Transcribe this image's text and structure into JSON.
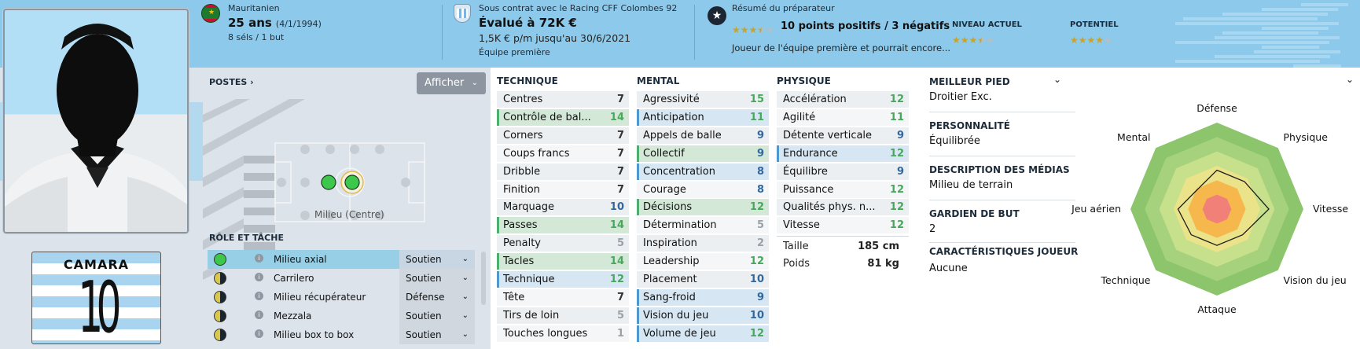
{
  "header": {
    "nationality": "Mauritanien",
    "age": "25 ans",
    "birthdate": "(4/1/1994)",
    "caps": "8 séls / 1 but",
    "contract_with": "Sous contrat avec le Racing CFF Colombes 92",
    "value": "Évalué à 72K €",
    "wage": "1,5K € p/m jusqu'au 30/6/2021",
    "squad": "Équipe première",
    "scout_title": "Résumé du préparateur",
    "scout_summary": "10 points positifs / 3 négatifs",
    "scout_detail": "Joueur de l'équipe première et pourrait encore...",
    "scout_stars": 3.5,
    "current_label": "NIVEAU ACTUEL",
    "current_stars": 3.5,
    "potential_label": "POTENTIEL",
    "potential_stars": 4
  },
  "player": {
    "shirt_name": "CAMARA",
    "shirt_number": "10"
  },
  "positions": {
    "title": "POSTES ›",
    "button": "Afficher",
    "position_label": "Milieu (Centre)",
    "roles_title": "RÔLE ET TÂCHE",
    "roles": [
      {
        "name": "Milieu axial",
        "duty": "Soutien",
        "selected": true,
        "rating": "full"
      },
      {
        "name": "Carrilero",
        "duty": "Soutien",
        "selected": false,
        "rating": "half"
      },
      {
        "name": "Milieu récupérateur",
        "duty": "Défense",
        "selected": false,
        "rating": "half"
      },
      {
        "name": "Mezzala",
        "duty": "Soutien",
        "selected": false,
        "rating": "half"
      },
      {
        "name": "Milieu box to box",
        "duty": "Soutien",
        "selected": false,
        "rating": "half"
      }
    ]
  },
  "attributes": {
    "technique": {
      "title": "TECHNIQUE",
      "items": [
        {
          "name": "Centres",
          "value": "7",
          "hl": ""
        },
        {
          "name": "Contrôle de bal...",
          "value": "14",
          "hl": "g"
        },
        {
          "name": "Corners",
          "value": "7",
          "hl": ""
        },
        {
          "name": "Coups francs",
          "value": "7",
          "hl": ""
        },
        {
          "name": "Dribble",
          "value": "7",
          "hl": ""
        },
        {
          "name": "Finition",
          "value": "7",
          "hl": ""
        },
        {
          "name": "Marquage",
          "value": "10",
          "hl": ""
        },
        {
          "name": "Passes",
          "value": "14",
          "hl": "g"
        },
        {
          "name": "Penalty",
          "value": "5",
          "hl": ""
        },
        {
          "name": "Tacles",
          "value": "14",
          "hl": "g"
        },
        {
          "name": "Technique",
          "value": "12",
          "hl": "b"
        },
        {
          "name": "Tête",
          "value": "7",
          "hl": ""
        },
        {
          "name": "Tirs de loin",
          "value": "5",
          "hl": ""
        },
        {
          "name": "Touches longues",
          "value": "1",
          "hl": ""
        }
      ]
    },
    "mental": {
      "title": "MENTAL",
      "items": [
        {
          "name": "Agressivité",
          "value": "15",
          "hl": ""
        },
        {
          "name": "Anticipation",
          "value": "11",
          "hl": "b"
        },
        {
          "name": "Appels de balle",
          "value": "9",
          "hl": ""
        },
        {
          "name": "Collectif",
          "value": "9",
          "hl": "g"
        },
        {
          "name": "Concentration",
          "value": "8",
          "hl": "b"
        },
        {
          "name": "Courage",
          "value": "8",
          "hl": ""
        },
        {
          "name": "Décisions",
          "value": "12",
          "hl": "g"
        },
        {
          "name": "Détermination",
          "value": "5",
          "hl": ""
        },
        {
          "name": "Inspiration",
          "value": "2",
          "hl": ""
        },
        {
          "name": "Leadership",
          "value": "12",
          "hl": ""
        },
        {
          "name": "Placement",
          "value": "10",
          "hl": ""
        },
        {
          "name": "Sang-froid",
          "value": "9",
          "hl": "b"
        },
        {
          "name": "Vision du jeu",
          "value": "10",
          "hl": "b"
        },
        {
          "name": "Volume de jeu",
          "value": "12",
          "hl": "b"
        }
      ]
    },
    "physique": {
      "title": "PHYSIQUE",
      "items": [
        {
          "name": "Accélération",
          "value": "12",
          "hl": ""
        },
        {
          "name": "Agilité",
          "value": "11",
          "hl": ""
        },
        {
          "name": "Détente verticale",
          "value": "9",
          "hl": ""
        },
        {
          "name": "Endurance",
          "value": "12",
          "hl": "b"
        },
        {
          "name": "Équilibre",
          "value": "9",
          "hl": ""
        },
        {
          "name": "Puissance",
          "value": "12",
          "hl": ""
        },
        {
          "name": "Qualités phys. n...",
          "value": "12",
          "hl": ""
        },
        {
          "name": "Vitesse",
          "value": "12",
          "hl": ""
        }
      ],
      "height_label": "Taille",
      "height": "185 cm",
      "weight_label": "Poids",
      "weight": "81 kg"
    }
  },
  "info": {
    "foot_label": "MEILLEUR PIED",
    "foot": "Droitier Exc.",
    "personality_label": "PERSONNALITÉ",
    "personality": "Équilibrée",
    "media_label": "DESCRIPTION DES MÉDIAS",
    "media": "Milieu de terrain",
    "gk_label": "GARDIEN DE BUT",
    "gk": "2",
    "traits_label": "CARACTÉRISTIQUES JOUEUR",
    "traits": "Aucune"
  },
  "radar": {
    "labels": [
      "Défense",
      "Physique",
      "Vitesse",
      "Vision du jeu",
      "Attaque",
      "Technique",
      "Jeu aérien",
      "Mental"
    ],
    "values": [
      0.45,
      0.45,
      0.6,
      0.42,
      0.42,
      0.42,
      0.45,
      0.32
    ],
    "colors": [
      "#8cc56b",
      "#a6d27d",
      "#c6e08c",
      "#ebe38a",
      "#f6b84c",
      "#f08078"
    ]
  }
}
